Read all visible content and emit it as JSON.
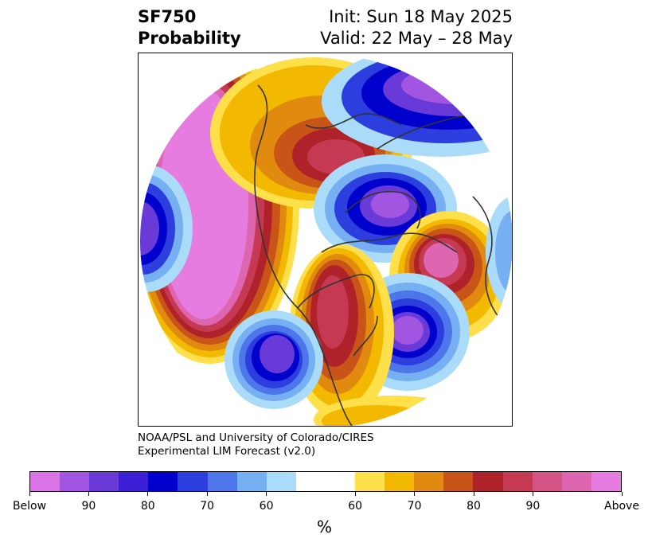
{
  "title": {
    "left_line1": "SF750",
    "left_line2": "Probability",
    "right_line1": "Init: Sun 18 May 2025",
    "right_line2": "Valid: 22 May – 28 May"
  },
  "credit": {
    "line1": "NOAA/PSL and University of Colorado/CIRES",
    "line2": "Experimental LIM Forecast (v2.0)"
  },
  "colorbar": {
    "label": "%",
    "colors": [
      "#d874e6",
      "#a155e0",
      "#6a3ad8",
      "#3a1fd4",
      "#0000cc",
      "#2c3ede",
      "#4d76ea",
      "#76b0f2",
      "#aadcfa",
      "#ffffff",
      "#ffe04a",
      "#f3b800",
      "#e08a10",
      "#c85418",
      "#b0222a",
      "#c53a52",
      "#d35485",
      "#de66b0",
      "#e77ce0"
    ],
    "ticks": [
      "Below",
      "90",
      "80",
      "70",
      "60",
      "60",
      "70",
      "80",
      "90",
      "Above"
    ]
  },
  "map": {
    "type": "north-polar stereographic probability map",
    "colors": {
      "magenta": "#e77ce0",
      "pink": "#de66b0",
      "rose": "#c53a52",
      "darkred": "#b0222a",
      "rust": "#c85418",
      "orange": "#e08a10",
      "gold": "#f3b800",
      "yellow": "#ffe04a",
      "lightblue": "#aadcfa",
      "skyblue": "#76b0f2",
      "blue": "#4d76ea",
      "royal": "#2c3ede",
      "navy": "#0000cc",
      "indigo": "#3a1fd4",
      "violet": "#6a3ad8",
      "purple": "#a155e0",
      "coast": "#333333"
    }
  }
}
